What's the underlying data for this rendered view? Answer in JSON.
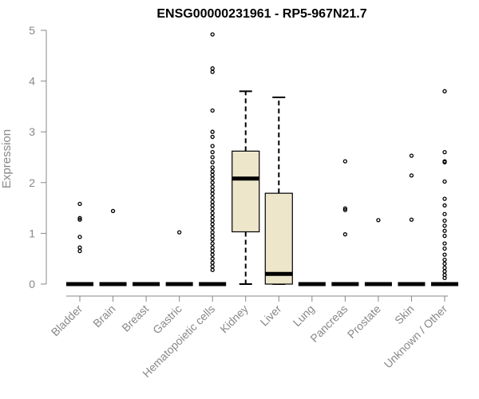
{
  "chart_data": {
    "type": "boxplot",
    "title": "ENSG00000231961 - RP5-967N21.7",
    "xlabel": "",
    "ylabel": "Expression",
    "ylim": [
      0,
      5
    ],
    "yticks": [
      "0",
      "1",
      "2",
      "3",
      "4",
      "5"
    ],
    "box_color": "#ede6cb",
    "axis_color": "#888888",
    "categories": [
      "Bladder",
      "Brain",
      "Breast",
      "Gastric",
      "Hematopoietic cells",
      "Kidney",
      "Liver",
      "Lung",
      "Pancreas",
      "Prostate",
      "Skin",
      "Unknown / Other"
    ],
    "boxes": [
      {
        "q1": 0,
        "median": 0,
        "q3": 0,
        "whisker_low": 0,
        "whisker_high": 0,
        "outliers": [
          0.65,
          0.72,
          0.93,
          1.27,
          1.3,
          1.58
        ]
      },
      {
        "q1": 0,
        "median": 0,
        "q3": 0,
        "whisker_low": 0,
        "whisker_high": 0,
        "outliers": [
          1.44
        ]
      },
      {
        "q1": 0,
        "median": 0,
        "q3": 0,
        "whisker_low": 0,
        "whisker_high": 0,
        "outliers": []
      },
      {
        "q1": 0,
        "median": 0,
        "q3": 0,
        "whisker_low": 0,
        "whisker_high": 0,
        "outliers": [
          1.02
        ]
      },
      {
        "q1": 0,
        "median": 0,
        "q3": 0,
        "whisker_low": 0,
        "whisker_high": 0,
        "outliers": [
          0.28,
          0.35,
          0.42,
          0.5,
          0.58,
          0.65,
          0.72,
          0.8,
          0.88,
          0.95,
          1.02,
          1.1,
          1.18,
          1.25,
          1.32,
          1.4,
          1.48,
          1.55,
          1.62,
          1.7,
          1.78,
          1.85,
          1.92,
          2.0,
          2.08,
          2.15,
          2.22,
          2.3,
          2.4,
          2.5,
          2.6,
          2.72,
          2.9,
          3.0,
          3.42,
          4.18,
          4.25,
          4.92
        ]
      },
      {
        "q1": 1.03,
        "median": 2.08,
        "q3": 2.62,
        "whisker_low": 0,
        "whisker_high": 3.8,
        "outliers": []
      },
      {
        "q1": 0,
        "median": 0.2,
        "q3": 1.79,
        "whisker_low": 0,
        "whisker_high": 3.68,
        "outliers": []
      },
      {
        "q1": 0,
        "median": 0,
        "q3": 0,
        "whisker_low": 0,
        "whisker_high": 0,
        "outliers": []
      },
      {
        "q1": 0,
        "median": 0,
        "q3": 0,
        "whisker_low": 0,
        "whisker_high": 0,
        "outliers": [
          0.98,
          1.46,
          1.49,
          2.42
        ]
      },
      {
        "q1": 0,
        "median": 0,
        "q3": 0,
        "whisker_low": 0,
        "whisker_high": 0,
        "outliers": [
          1.26
        ]
      },
      {
        "q1": 0,
        "median": 0,
        "q3": 0,
        "whisker_low": 0,
        "whisker_high": 0,
        "outliers": [
          1.27,
          2.14,
          2.53
        ]
      },
      {
        "q1": 0,
        "median": 0,
        "q3": 0,
        "whisker_low": 0,
        "whisker_high": 0,
        "outliers": [
          0.12,
          0.18,
          0.25,
          0.32,
          0.4,
          0.48,
          0.58,
          0.7,
          0.8,
          0.95,
          1.05,
          1.15,
          1.25,
          1.38,
          1.55,
          1.68,
          2.02,
          2.4,
          2.42,
          2.6,
          3.8
        ]
      }
    ]
  }
}
